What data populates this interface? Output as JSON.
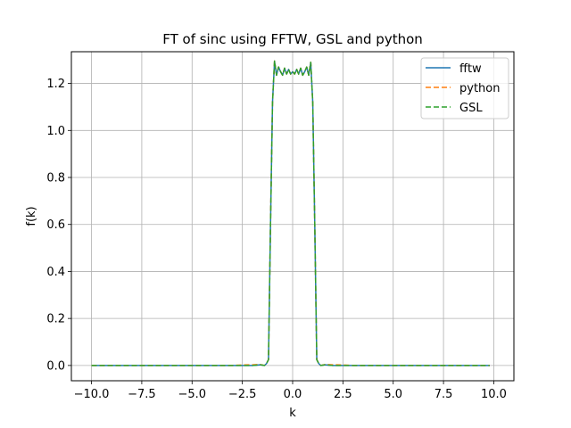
{
  "chart_data": {
    "type": "line",
    "title": "FT of sinc using FFTW, GSL and python",
    "xlabel": "k",
    "ylabel": "f(k)",
    "xlim": [
      -11.0,
      11.0
    ],
    "ylim": [
      -0.065,
      1.335
    ],
    "xticks": [
      -10.0,
      -7.5,
      -5.0,
      -2.5,
      0.0,
      2.5,
      5.0,
      7.5,
      10.0
    ],
    "xtick_labels": [
      "−10.0",
      "−7.5",
      "−5.0",
      "−2.5",
      "0.0",
      "2.5",
      "5.0",
      "7.5",
      "10.0"
    ],
    "yticks": [
      0.0,
      0.2,
      0.4,
      0.6,
      0.8,
      1.0,
      1.2
    ],
    "ytick_labels": [
      "0.0",
      "0.2",
      "0.4",
      "0.6",
      "0.8",
      "1.0",
      "1.2"
    ],
    "grid": true,
    "legend_position": "top-right",
    "x": [
      -10.0,
      -9.0,
      -8.0,
      -7.0,
      -6.0,
      -5.0,
      -4.0,
      -3.0,
      -2.5,
      -2.0,
      -1.6,
      -1.4,
      -1.3,
      -1.2,
      -1.1,
      -1.0,
      -0.9,
      -0.8,
      -0.7,
      -0.6,
      -0.5,
      -0.4,
      -0.3,
      -0.2,
      -0.1,
      0.0,
      0.1,
      0.2,
      0.3,
      0.4,
      0.5,
      0.6,
      0.7,
      0.8,
      0.9,
      1.0,
      1.1,
      1.2,
      1.3,
      1.4,
      1.6,
      2.0,
      2.5,
      3.0,
      4.0,
      5.0,
      6.0,
      7.0,
      8.0,
      9.0,
      9.8
    ],
    "series": [
      {
        "name": "fftw",
        "color": "#1f77b4",
        "dash": "solid",
        "values": [
          0.0,
          0.0,
          0.0,
          0.0,
          0.0,
          0.0,
          0.0,
          0.0,
          0.0,
          0.0,
          0.003,
          0.0,
          0.008,
          0.025,
          0.6,
          1.12,
          1.295,
          1.235,
          1.27,
          1.25,
          1.235,
          1.265,
          1.24,
          1.26,
          1.24,
          1.25,
          1.24,
          1.26,
          1.24,
          1.265,
          1.235,
          1.25,
          1.27,
          1.235,
          1.29,
          1.12,
          0.6,
          0.025,
          0.008,
          0.0,
          0.003,
          0.0,
          0.0,
          0.0,
          0.0,
          0.0,
          0.0,
          0.0,
          0.0,
          0.0,
          0.0
        ]
      },
      {
        "name": "python",
        "color": "#ff7f0e",
        "dash": "dashed",
        "values": [
          0.0,
          0.0,
          0.0,
          0.0,
          0.0,
          0.0,
          0.0,
          0.0,
          0.002,
          0.003,
          0.004,
          0.0,
          0.008,
          0.025,
          0.6,
          1.12,
          1.295,
          1.235,
          1.27,
          1.25,
          1.235,
          1.265,
          1.24,
          1.26,
          1.24,
          1.25,
          1.24,
          1.26,
          1.24,
          1.265,
          1.235,
          1.25,
          1.27,
          1.235,
          1.29,
          1.12,
          0.6,
          0.025,
          0.008,
          0.0,
          0.004,
          0.003,
          0.002,
          0.0,
          0.0,
          0.0,
          0.0,
          0.0,
          0.0,
          0.0,
          0.0
        ]
      },
      {
        "name": "GSL",
        "color": "#2ca02c",
        "dash": "dashed",
        "values": [
          0.0,
          0.0,
          0.0,
          0.0,
          0.0,
          0.0,
          0.0,
          0.0,
          0.0,
          0.0,
          0.003,
          0.0,
          0.008,
          0.025,
          0.6,
          1.12,
          1.295,
          1.235,
          1.27,
          1.25,
          1.235,
          1.265,
          1.24,
          1.26,
          1.24,
          1.25,
          1.24,
          1.26,
          1.24,
          1.265,
          1.235,
          1.25,
          1.27,
          1.235,
          1.29,
          1.12,
          0.6,
          0.025,
          0.008,
          0.0,
          0.003,
          0.0,
          0.0,
          0.0,
          0.0,
          0.0,
          0.0,
          0.0,
          0.0,
          0.0,
          0.0
        ]
      }
    ]
  }
}
